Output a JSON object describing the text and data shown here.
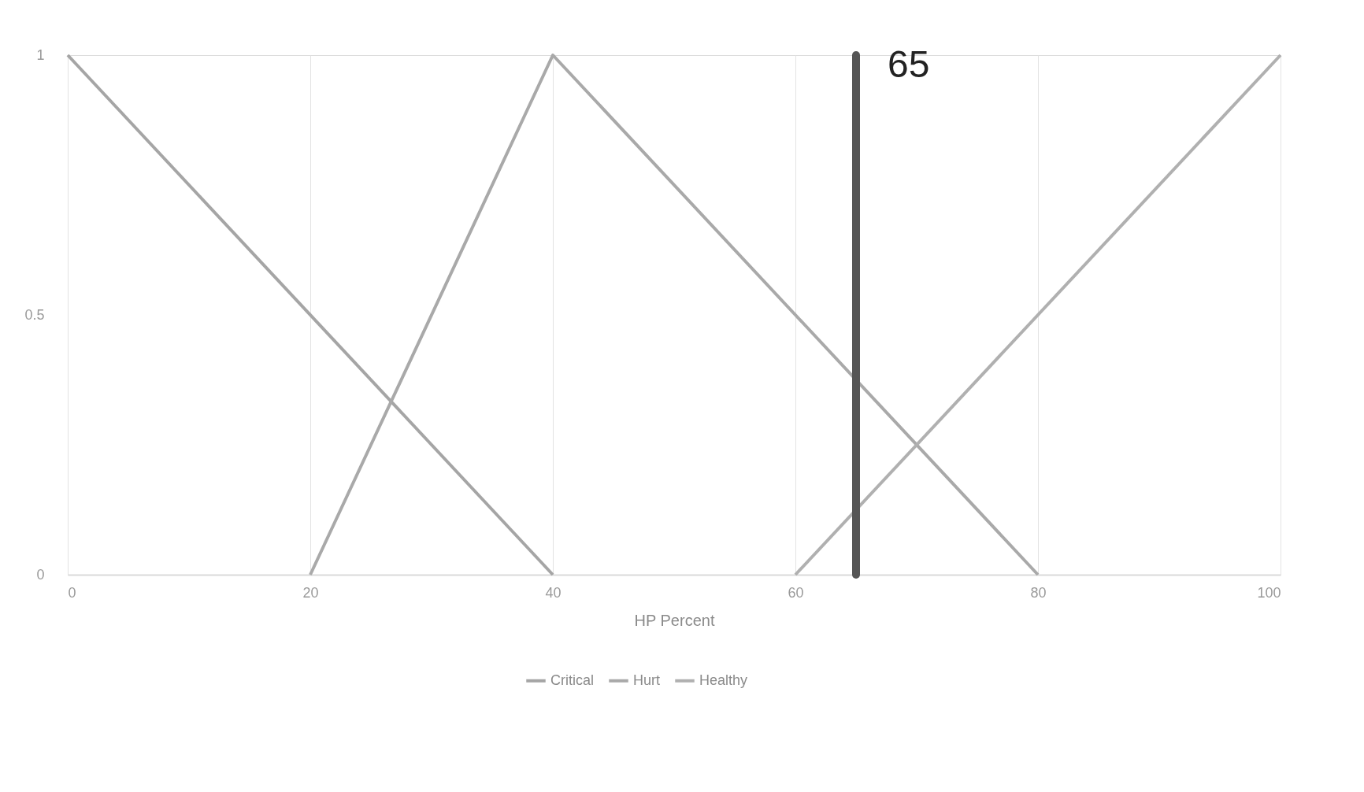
{
  "chart_data": {
    "type": "line",
    "xlabel": "HP Percent",
    "xlim": [
      0,
      100
    ],
    "xticks": [
      0,
      20,
      40,
      60,
      80,
      100
    ],
    "ylim": [
      0,
      1
    ],
    "yticks": [
      0,
      0.5,
      1
    ],
    "grid": "x",
    "legend": "bottom",
    "marker": "none",
    "line_style": "solid",
    "series": [
      {
        "name": "Critical",
        "color": "#a5a5a5",
        "x": [
          0,
          40
        ],
        "values": [
          1,
          0
        ]
      },
      {
        "name": "Hurt",
        "color": "#a9a9a9",
        "x": [
          20,
          40,
          80
        ],
        "values": [
          0,
          1,
          0
        ]
      },
      {
        "name": "Healthy",
        "color": "#b0b0b0",
        "x": [
          60,
          100
        ],
        "values": [
          0,
          1
        ]
      }
    ],
    "ref_lines": [
      {
        "axis": "x",
        "value": 65,
        "label": "65",
        "color": "#555555"
      }
    ]
  }
}
